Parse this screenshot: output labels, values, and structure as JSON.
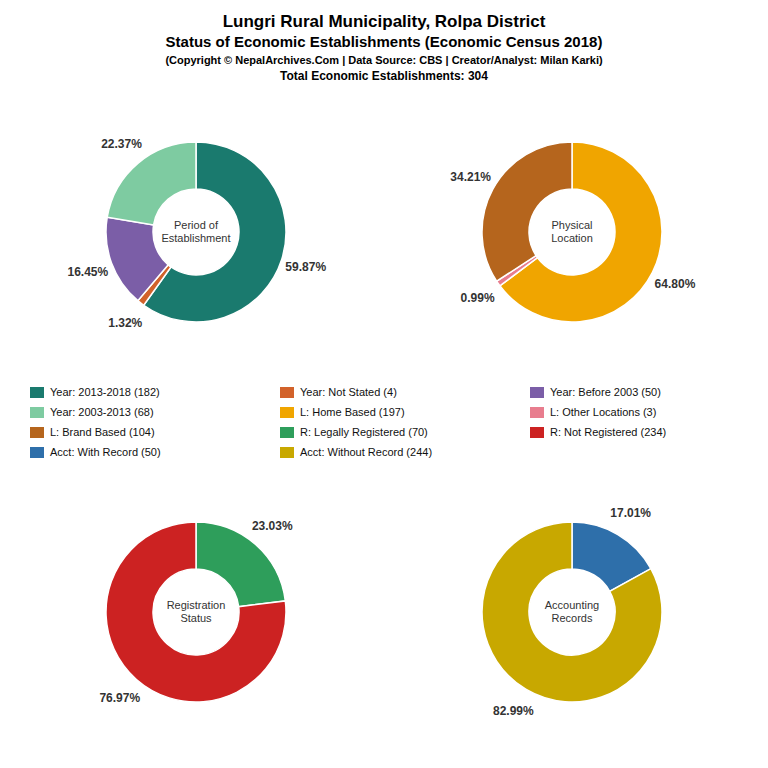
{
  "title": "Lungri Rural Municipality, Rolpa District\nStatus of Economic Establishments (Economic Census 2018)",
  "subtitle": "(Copyright © NepalArchives.Com | Data Source: CBS | Creator/Analyst: Milan Karki)\nTotal Economic Establishments: 304",
  "chart_data": [
    {
      "type": "pie",
      "title": "Period of\nEstablishment",
      "categories": [
        "Year: 2013-2018 (182)",
        "Year: Not Stated (4)",
        "Year: Before 2003 (50)",
        "Year: 2003-2013 (68)"
      ],
      "values": [
        59.87,
        1.32,
        16.45,
        22.37
      ],
      "value_labels": [
        "59.87%",
        "1.32%",
        "16.45%",
        "22.37%"
      ],
      "colors": [
        "#1a7a6e",
        "#d2622a",
        "#7b5ea7",
        "#7ecba1"
      ],
      "data_labels": true,
      "legend": "center"
    },
    {
      "type": "pie",
      "title": "Physical\nLocation",
      "categories": [
        "L: Home Based (197)",
        "L: Other Locations (3)",
        "L: Brand Based (104)"
      ],
      "values": [
        64.8,
        0.99,
        34.21
      ],
      "value_labels": [
        "64.80%",
        "0.99%",
        "34.21%"
      ],
      "colors": [
        "#f0a500",
        "#e87d8e",
        "#b5651d"
      ],
      "data_labels": true,
      "legend": "center"
    },
    {
      "type": "pie",
      "title": "Registration\nStatus",
      "categories": [
        "R: Legally Registered (70)",
        "R: Not Registered (234)"
      ],
      "values": [
        23.03,
        76.97
      ],
      "value_labels": [
        "23.03%",
        "76.97%"
      ],
      "colors": [
        "#2e9e5b",
        "#cc2222"
      ],
      "data_labels": true,
      "legend": "center"
    },
    {
      "type": "pie",
      "title": "Accounting\nRecords",
      "categories": [
        "Acct: With Record (50)",
        "Acct: Without Record (244)"
      ],
      "values": [
        17.01,
        82.99
      ],
      "value_labels": [
        "17.01%",
        "82.99%"
      ],
      "colors": [
        "#2e6faa",
        "#c8a800"
      ],
      "data_labels": true,
      "legend": "center"
    }
  ]
}
